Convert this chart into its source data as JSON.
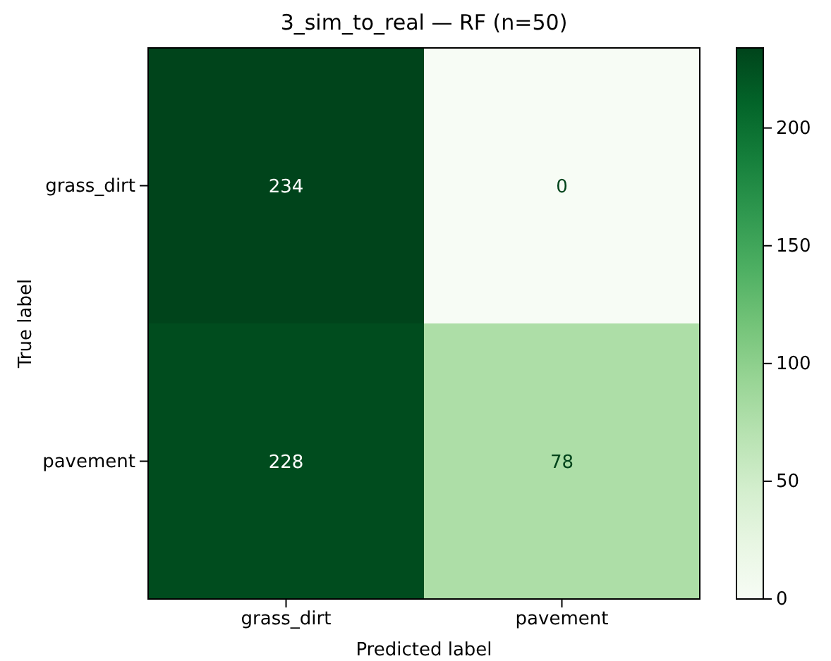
{
  "chart_data": {
    "type": "heatmap",
    "title": "3_sim_to_real — RF (n=50)",
    "xlabel": "Predicted label",
    "ylabel": "True label",
    "categories": [
      "grass_dirt",
      "pavement"
    ],
    "y_categories": [
      "grass_dirt",
      "pavement"
    ],
    "cells": [
      [
        234,
        0
      ],
      [
        228,
        78
      ]
    ],
    "clim": [
      0,
      234
    ],
    "cticks": [
      0,
      50,
      100,
      150,
      200
    ],
    "data_labels": true
  }
}
